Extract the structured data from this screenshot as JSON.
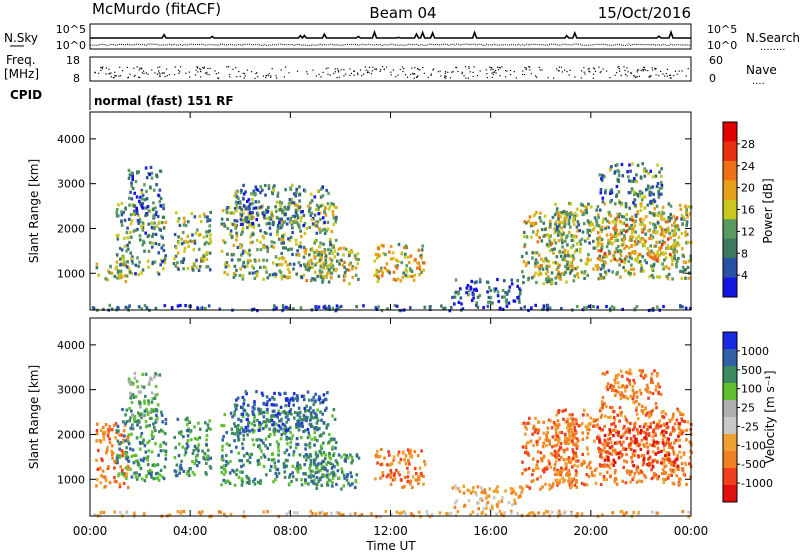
{
  "header": {
    "station": "McMurdo (fitACF)",
    "beam": "Beam 04",
    "date": "15/Oct/2016"
  },
  "sky_panel": {
    "left_label": "N.Sky",
    "right_label": "N.Search",
    "right_dots": "........",
    "left_ticks": [
      "10^5",
      "10^0"
    ],
    "right_ticks": [
      "10^5",
      "10^0"
    ]
  },
  "freq_panel": {
    "left_label_top": "Freq.",
    "left_label_bottom": "[MHz]",
    "right_label": "Nave",
    "right_dots": "....",
    "left_ticks": [
      "18",
      "8"
    ],
    "right_ticks": [
      "60",
      "0"
    ]
  },
  "cpid": {
    "label": "CPID",
    "text": "normal (fast) 151 RF"
  },
  "colors": {
    "power": [
      "#1515e0",
      "#2a50a8",
      "#3d7860",
      "#5a9a60",
      "#c8c820",
      "#e8a018",
      "#f07018",
      "#e83010",
      "#e00000"
    ],
    "velocity": [
      "#e01010",
      "#f04020",
      "#f08020",
      "#f0a030",
      "#c8c8c8",
      "#b0b0b0",
      "#60c030",
      "#3d8a60",
      "#3060a8",
      "#1a2ae0"
    ]
  },
  "chart_data": [
    {
      "type": "heatmap",
      "name_label": "power-panel",
      "xlabel": "",
      "ylabel": "Slant Range [km]",
      "x_range_hours": [
        0,
        24
      ],
      "ylim": [
        180,
        4600
      ],
      "yticks": [
        "1000",
        "2000",
        "3000",
        "4000"
      ],
      "colorbar": {
        "label": "Power [dB]",
        "ticks": [
          "4",
          "8",
          "12",
          "16",
          "20",
          "24",
          "28"
        ],
        "range": [
          0,
          30
        ]
      },
      "regions": [
        {
          "t0": 0.2,
          "t1": 1.5,
          "r0": 850,
          "r1": 1300,
          "v": 14
        },
        {
          "t0": 1.0,
          "t1": 3.0,
          "r0": 1000,
          "r1": 2600,
          "v": 10
        },
        {
          "t0": 1.5,
          "t1": 2.8,
          "r0": 2300,
          "r1": 3400,
          "v": 7
        },
        {
          "t0": 3.3,
          "t1": 4.8,
          "r0": 1100,
          "r1": 2400,
          "v": 11
        },
        {
          "t0": 5.2,
          "t1": 9.8,
          "r0": 900,
          "r1": 2600,
          "v": 12
        },
        {
          "t0": 5.7,
          "t1": 9.5,
          "r0": 2100,
          "r1": 3000,
          "v": 8
        },
        {
          "t0": 8.5,
          "t1": 10.7,
          "r0": 800,
          "r1": 1600,
          "v": 14
        },
        {
          "t0": 11.3,
          "t1": 13.4,
          "r0": 850,
          "r1": 1700,
          "v": 16
        },
        {
          "t0": 14.4,
          "t1": 17.2,
          "r0": 350,
          "r1": 900,
          "v": 6
        },
        {
          "t0": 17.2,
          "t1": 19.4,
          "r0": 800,
          "r1": 2400,
          "v": 14
        },
        {
          "t0": 18.5,
          "t1": 24.0,
          "r0": 900,
          "r1": 2600,
          "v": 13
        },
        {
          "t0": 20.2,
          "t1": 23.5,
          "r0": 1300,
          "r1": 2300,
          "v": 18
        },
        {
          "t0": 20.3,
          "t1": 22.8,
          "r0": 2600,
          "r1": 3500,
          "v": 8
        },
        {
          "t0": 0.0,
          "t1": 24.0,
          "r0": 200,
          "r1": 320,
          "v": 5
        }
      ]
    },
    {
      "type": "heatmap",
      "name_label": "velocity-panel",
      "xlabel": "Time UT",
      "ylabel": "Slant Range [km]",
      "x_range_hours": [
        0,
        24
      ],
      "ylim": [
        180,
        4600
      ],
      "xticks": [
        "00:00",
        "04:00",
        "08:00",
        "12:00",
        "16:00",
        "20:00",
        "00:00"
      ],
      "yticks": [
        "1000",
        "2000",
        "3000",
        "4000"
      ],
      "colorbar": {
        "label": "Velocity [m s⁻¹]",
        "ticks": [
          "1000",
          "500",
          "100",
          "25",
          "-25",
          "-100",
          "-500",
          "-1000"
        ]
      },
      "regions": [
        {
          "t0": 0.2,
          "t1": 1.5,
          "r0": 850,
          "r1": 2300,
          "v": 2
        },
        {
          "t0": 1.0,
          "t1": 3.0,
          "r0": 1000,
          "r1": 2600,
          "v": 7
        },
        {
          "t0": 1.5,
          "t1": 2.8,
          "r0": 2300,
          "r1": 3400,
          "v": 6
        },
        {
          "t0": 3.3,
          "t1": 4.8,
          "r0": 1100,
          "r1": 2400,
          "v": 7
        },
        {
          "t0": 5.2,
          "t1": 9.8,
          "r0": 900,
          "r1": 2600,
          "v": 7
        },
        {
          "t0": 5.7,
          "t1": 9.5,
          "r0": 2100,
          "r1": 3000,
          "v": 8
        },
        {
          "t0": 8.5,
          "t1": 10.7,
          "r0": 800,
          "r1": 1600,
          "v": 7
        },
        {
          "t0": 11.3,
          "t1": 13.4,
          "r0": 850,
          "r1": 1700,
          "v": 2
        },
        {
          "t0": 14.4,
          "t1": 17.2,
          "r0": 350,
          "r1": 900,
          "v": 3
        },
        {
          "t0": 17.2,
          "t1": 19.4,
          "r0": 800,
          "r1": 2400,
          "v": 2
        },
        {
          "t0": 18.5,
          "t1": 24.0,
          "r0": 900,
          "r1": 2600,
          "v": 2
        },
        {
          "t0": 20.2,
          "t1": 23.5,
          "r0": 1300,
          "r1": 2300,
          "v": 1
        },
        {
          "t0": 20.3,
          "t1": 22.8,
          "r0": 2600,
          "r1": 3500,
          "v": 2
        },
        {
          "t0": 0.0,
          "t1": 24.0,
          "r0": 200,
          "r1": 320,
          "v": 3
        }
      ]
    }
  ]
}
